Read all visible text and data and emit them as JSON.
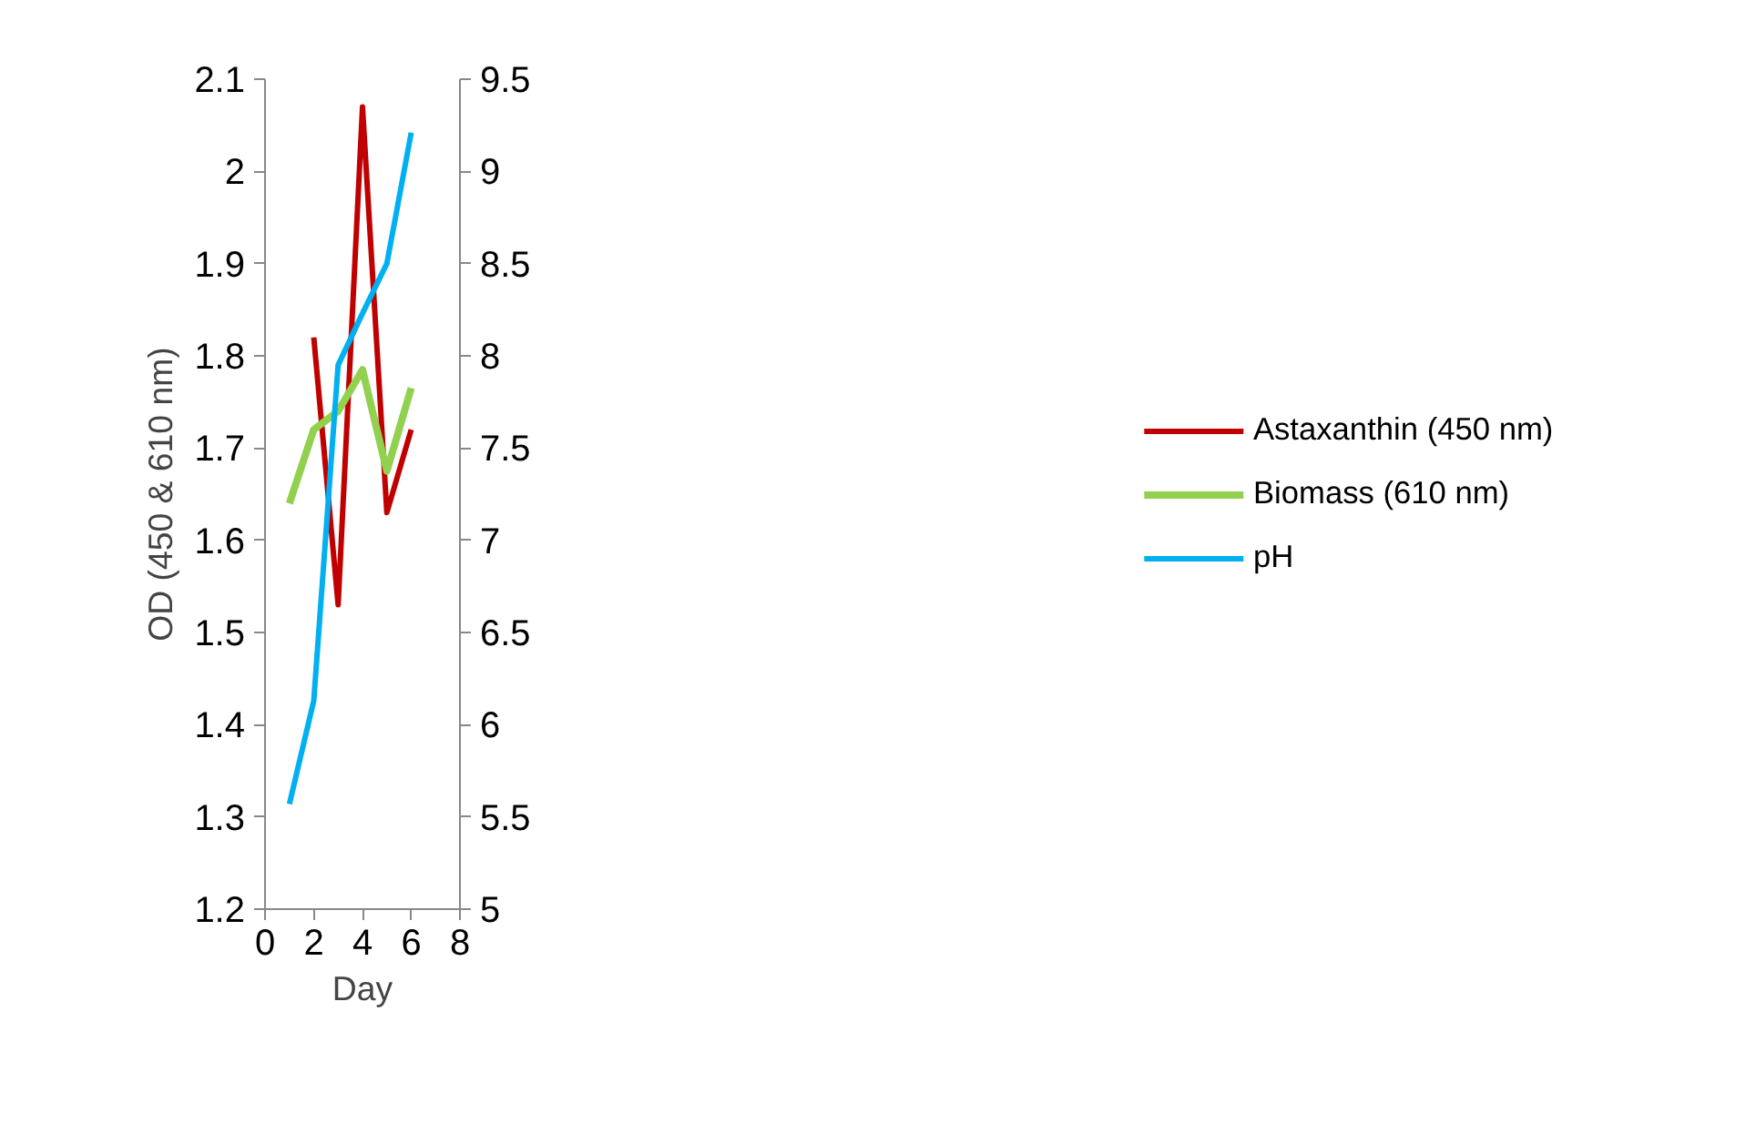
{
  "chart_data": {
    "type": "line",
    "xlabel": "Day",
    "ylabel": "OD (450 & 610 nm)",
    "xlim": [
      0,
      8
    ],
    "xticks": [
      0,
      2,
      4,
      6,
      8
    ],
    "ylim": [
      1.2,
      2.1
    ],
    "yticks": [
      1.2,
      1.3,
      1.4,
      1.5,
      1.6,
      1.7,
      1.8,
      1.9,
      2,
      2.1
    ],
    "y2lim": [
      5,
      9.5
    ],
    "y2ticks": [
      5,
      5.5,
      6,
      6.5,
      7,
      7.5,
      8,
      8.5,
      9,
      9.5
    ],
    "legend": "right",
    "grid": false,
    "marker": "none",
    "series": [
      {
        "name": "Astaxanthin (450 nm)",
        "color": "#c00000",
        "x": [
          2,
          3,
          4,
          5,
          6
        ],
        "values": [
          1.82,
          1.53,
          2.07,
          1.63,
          1.72
        ]
      },
      {
        "name": "Biomass (610 nm)",
        "color": "#92d050",
        "x": [
          1,
          2,
          3,
          4,
          5,
          6
        ],
        "values": [
          1.64,
          1.72,
          1.74,
          1.785,
          1.675,
          1.765
        ]
      },
      {
        "name": "pH",
        "color": "#00b0f0",
        "axis": "y2",
        "x": [
          1,
          2,
          3,
          4,
          5,
          6
        ],
        "values": [
          5.57,
          6.13,
          7.95,
          8.23,
          8.5,
          9.21
        ]
      }
    ]
  }
}
